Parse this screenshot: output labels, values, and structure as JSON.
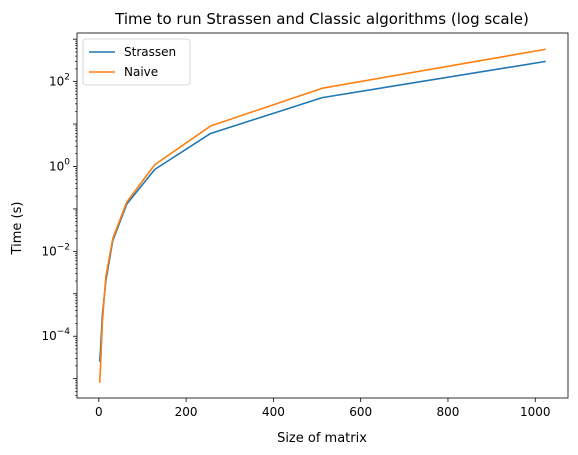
{
  "chart_data": {
    "type": "line",
    "title": "Time to run Strassen and Classic algorithms (log scale)",
    "xlabel": "Size of matrix",
    "ylabel": "Time (s)",
    "x": [
      2,
      4,
      8,
      16,
      32,
      64,
      128,
      256,
      512,
      1024
    ],
    "xlim": [
      -50,
      1075
    ],
    "ylim": [
      3.5e-06,
      1400
    ],
    "yscale": "log",
    "series": [
      {
        "name": "Strassen",
        "color": "#1f77b4",
        "values": [
          2.5e-05,
          5e-05,
          0.0003,
          0.002,
          0.018,
          0.13,
          0.85,
          6.0,
          42,
          300
        ]
      },
      {
        "name": "Naive",
        "color": "#ff7f0e",
        "values": [
          8e-06,
          2e-05,
          0.0002,
          0.0025,
          0.02,
          0.145,
          1.1,
          9.0,
          70,
          580
        ]
      }
    ],
    "xticks": [
      {
        "value": 0,
        "label": "0"
      },
      {
        "value": 200,
        "label": "200"
      },
      {
        "value": 400,
        "label": "400"
      },
      {
        "value": 600,
        "label": "600"
      },
      {
        "value": 800,
        "label": "800"
      },
      {
        "value": 1000,
        "label": "1000"
      }
    ],
    "yticks": [
      {
        "value": 0.0001,
        "base": "10",
        "exp": "−4"
      },
      {
        "value": 0.01,
        "base": "10",
        "exp": "−2"
      },
      {
        "value": 1,
        "base": "10",
        "exp": "0"
      },
      {
        "value": 100,
        "base": "10",
        "exp": "2"
      }
    ],
    "legend": {
      "position": "top-left"
    },
    "grid": false
  }
}
